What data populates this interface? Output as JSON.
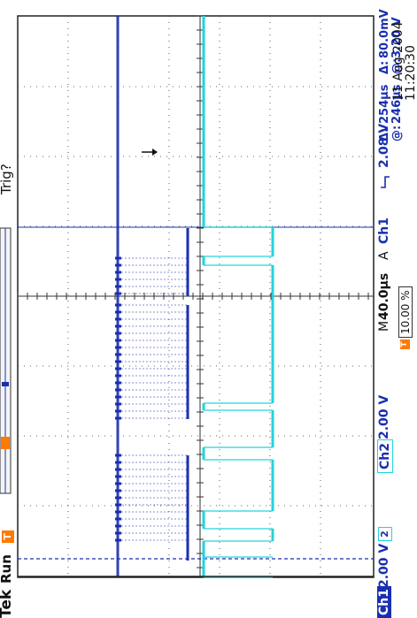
{
  "brand": "Tek",
  "acq_state": "Run",
  "trigger_status": "Trig?",
  "channels": {
    "ch1": {
      "label": "Ch1",
      "scale": "2.00 V",
      "marker": "1",
      "color": "#1a2fb0"
    },
    "ch2": {
      "label": "Ch2",
      "scale": "2.00 V",
      "marker": "2",
      "color": "#22d3dd"
    }
  },
  "timebase": {
    "label": "M",
    "value": "40.0µs"
  },
  "trigger": {
    "mode": "A",
    "source": "Ch1",
    "slope": "rising-edge-icon",
    "level": "2.08 V",
    "marker": "T"
  },
  "trigger_position": "10.00 %",
  "cursors": {
    "voltage": {
      "delta_label": "Δ:",
      "delta": "80.0mV",
      "at_label": "@:",
      "at": "3.20 V"
    },
    "time": {
      "delta_label": "Δ:",
      "delta": "254µs",
      "at_label": "@:",
      "at": "246µs"
    }
  },
  "date": "11 Aug 2004",
  "time": "11:20:30",
  "colors": {
    "ch1": "#1a2fb0",
    "ch2": "#22d3dd",
    "trigger": "#ff7a00",
    "graticule": "#333333"
  }
}
